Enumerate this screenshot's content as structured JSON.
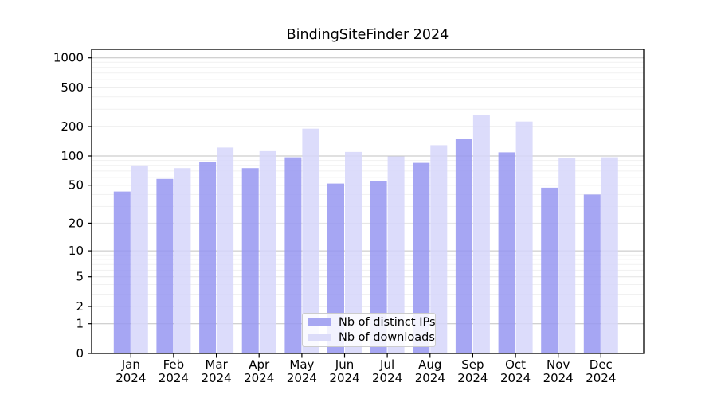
{
  "title": "BindingSiteFinder 2024",
  "legend": {
    "items": [
      {
        "label": "Nb of distinct IPs",
        "color": "#a7a7f2"
      },
      {
        "label": "Nb of downloads",
        "color": "#dcdcf9"
      }
    ]
  },
  "axes": {
    "y_ticks": [
      0,
      1,
      2,
      5,
      10,
      20,
      50,
      100,
      200,
      500,
      1000
    ],
    "x_months": [
      "Jan",
      "Feb",
      "Mar",
      "Apr",
      "May",
      "Jun",
      "Jul",
      "Aug",
      "Sep",
      "Oct",
      "Nov",
      "Dec"
    ],
    "x_year": "2024"
  },
  "chart_data": {
    "type": "bar",
    "title": "BindingSiteFinder 2024",
    "categories": [
      "Jan 2024",
      "Feb 2024",
      "Mar 2024",
      "Apr 2024",
      "May 2024",
      "Jun 2024",
      "Jul 2024",
      "Aug 2024",
      "Sep 2024",
      "Oct 2024",
      "Nov 2024",
      "Dec 2024"
    ],
    "series": [
      {
        "name": "Nb of distinct IPs",
        "color": "#a7a7f2",
        "values": [
          43,
          58,
          86,
          75,
          97,
          52,
          55,
          85,
          150,
          109,
          47,
          40
        ]
      },
      {
        "name": "Nb of downloads",
        "color": "#dcdcf9",
        "values": [
          80,
          75,
          122,
          112,
          190,
          110,
          99,
          129,
          260,
          225,
          95,
          97
        ]
      }
    ],
    "xlabel": "",
    "ylabel": "",
    "yscale": "log1p",
    "yticks": [
      0,
      1,
      2,
      5,
      10,
      20,
      50,
      100,
      200,
      500,
      1000
    ],
    "ylim": [
      0,
      1220
    ],
    "grid": "both",
    "legend_position": "lower center"
  }
}
